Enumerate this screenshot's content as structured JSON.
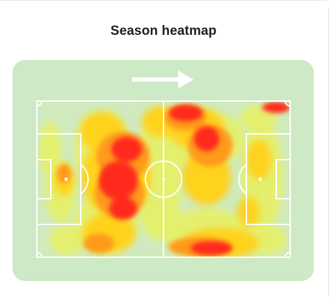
{
  "header": {
    "title": "Season heatmap"
  },
  "icons": {
    "direction": "arrow-right-icon"
  },
  "colors": {
    "field": "#cde9c5",
    "pitch_base": "#cfeabf",
    "lines": "#ffffff",
    "heat_low": "#e6f06a",
    "heat_mid": "#ffd21f",
    "heat_high": "#ff9a1a",
    "heat_peak": "#ff2a1a"
  }
}
